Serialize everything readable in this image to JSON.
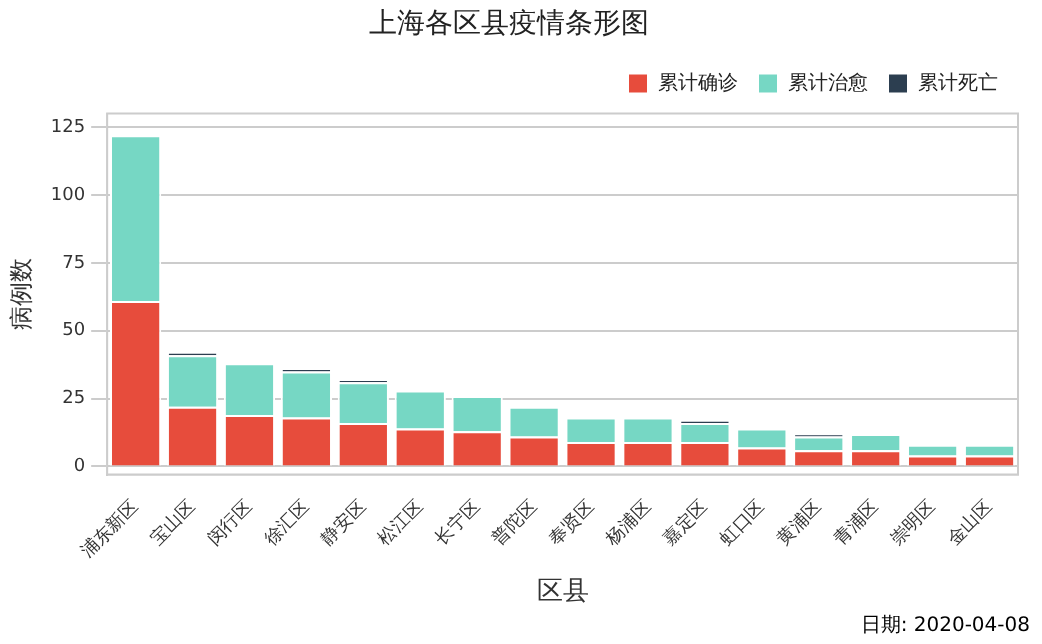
{
  "chart_data": {
    "type": "bar",
    "title": "上海各区县疫情条形图",
    "xlabel": "区县",
    "ylabel": "病例数",
    "categories": [
      "浦东新区",
      "宝山区",
      "闵行区",
      "徐汇区",
      "静安区",
      "松江区",
      "长宁区",
      "普陀区",
      "奉贤区",
      "杨浦区",
      "嘉定区",
      "虹口区",
      "黄浦区",
      "青浦区",
      "崇明区",
      "金山区"
    ],
    "series": [
      {
        "name": "累计确诊",
        "color": "#e74c3c",
        "values": [
          61,
          22,
          19,
          18,
          16,
          14,
          13,
          11,
          9,
          9,
          9,
          7,
          6,
          6,
          4,
          4
        ]
      },
      {
        "name": "累计治愈",
        "color": "#76d7c4",
        "values": [
          61,
          19,
          19,
          17,
          15,
          14,
          13,
          11,
          9,
          9,
          7,
          7,
          5,
          6,
          4,
          4
        ]
      },
      {
        "name": "累计死亡",
        "color": "#2c3e50",
        "values": [
          0,
          1,
          0,
          1,
          1,
          0,
          0,
          0,
          0,
          0,
          1,
          0,
          1,
          0,
          0,
          0
        ]
      }
    ],
    "stacked": true,
    "ylim": [
      -3,
      130
    ],
    "yticks": [
      0,
      25,
      50,
      75,
      100,
      125
    ],
    "grid": "y",
    "legend": "top right",
    "annotations": [
      "日期: 2020-04-08"
    ]
  }
}
